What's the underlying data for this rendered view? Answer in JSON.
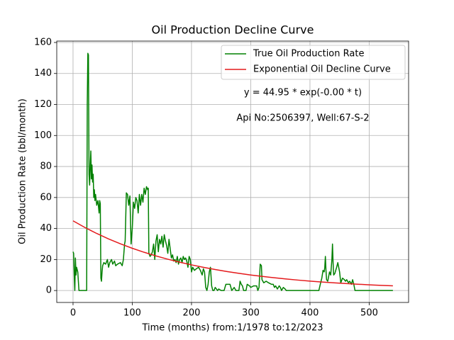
{
  "chart_data": {
    "type": "line",
    "title": "Oil Production Decline Curve",
    "x_label": "Time (months) from:1/1978 to:12/2023",
    "y_label": "Oil Production Rate (bbl/month)",
    "annotations": [
      "y = 44.95 * exp(-0.00 * t)",
      "Api No:2506397, Well:67-S-2"
    ],
    "xlim": [
      -27.5,
      566.5
    ],
    "ylim": [
      -7.7,
      160.9
    ],
    "xticks": [
      0,
      100,
      200,
      300,
      400,
      500
    ],
    "yticks": [
      0,
      20,
      40,
      60,
      80,
      100,
      120,
      140,
      160
    ],
    "grid": true,
    "legend": "upper right",
    "series": [
      {
        "name": "True Oil Production Rate",
        "color": "#008000",
        "x": [
          0,
          1,
          2,
          3,
          4,
          5,
          6,
          8,
          10,
          15,
          20,
          23,
          24,
          25,
          26,
          27,
          28,
          29,
          30,
          31,
          32,
          33,
          34,
          35,
          36,
          37,
          38,
          40,
          42,
          44,
          45,
          46,
          47,
          48,
          49,
          50,
          52,
          55,
          58,
          60,
          62,
          65,
          67,
          70,
          72,
          75,
          80,
          83,
          85,
          87,
          88,
          90,
          92,
          94,
          96,
          98,
          100,
          102,
          104,
          106,
          108,
          110,
          112,
          114,
          116,
          118,
          120,
          122,
          124,
          126,
          127,
          128,
          130,
          132,
          134,
          136,
          138,
          140,
          142,
          144,
          146,
          148,
          150,
          152,
          154,
          156,
          158,
          160,
          162,
          164,
          166,
          168,
          170,
          172,
          174,
          176,
          178,
          180,
          182,
          184,
          186,
          188,
          190,
          192,
          194,
          196,
          198,
          200,
          202,
          205,
          208,
          212,
          215,
          218,
          220,
          222,
          224,
          226,
          228,
          230,
          232,
          234,
          236,
          238,
          240,
          242,
          244,
          246,
          250,
          255,
          258,
          265,
          268,
          272,
          275,
          280,
          282,
          284,
          286,
          288,
          292,
          294,
          298,
          300,
          305,
          310,
          312,
          314,
          316,
          318,
          319,
          322,
          326,
          330,
          335,
          338,
          340,
          342,
          345,
          348,
          350,
          352,
          355,
          358,
          360,
          365,
          380,
          400,
          415,
          418,
          420,
          422,
          424,
          425,
          426,
          427,
          428,
          430,
          433,
          435,
          437,
          438,
          439,
          440,
          442,
          445,
          447,
          450,
          452,
          455,
          458,
          460,
          462,
          465,
          467,
          470,
          472,
          474,
          476,
          480,
          500,
          520,
          540
        ],
        "values": [
          25,
          24,
          10,
          0,
          21,
          10,
          15,
          12,
          0,
          0,
          0,
          0,
          120,
          153,
          152,
          75,
          68,
          80,
          90,
          72,
          81,
          70,
          75,
          60,
          65,
          58,
          62,
          55,
          58,
          50,
          58,
          56,
          8,
          6,
          12,
          16,
          18,
          17,
          20,
          15,
          18,
          20,
          17,
          19,
          16,
          17,
          18,
          16,
          20,
          30,
          32,
          63,
          62,
          55,
          61,
          30,
          40,
          57,
          53,
          60,
          58,
          50,
          62,
          55,
          62,
          57,
          66,
          62,
          67,
          65,
          66,
          24,
          22,
          23,
          25,
          30,
          20,
          32,
          36,
          25,
          33,
          30,
          35,
          28,
          36,
          32,
          29,
          24,
          33,
          27,
          21,
          23,
          19,
          20,
          18,
          22,
          17,
          20,
          21,
          18,
          22,
          20,
          21,
          19,
          15,
          22,
          20,
          12,
          15,
          13,
          14,
          15,
          13,
          10,
          14,
          12,
          2,
          0,
          4,
          12,
          15,
          3,
          0,
          0,
          2,
          1,
          0,
          1,
          0,
          0,
          4,
          4,
          0,
          2,
          0,
          0,
          6,
          4,
          3,
          0,
          0,
          4,
          3,
          2,
          3,
          3,
          0,
          2,
          17,
          16,
          7,
          5,
          6,
          5,
          4,
          4,
          2,
          3,
          1,
          3,
          2,
          0,
          2,
          1,
          0,
          0,
          0,
          0,
          0,
          5,
          8,
          13,
          12,
          15,
          22,
          13,
          7,
          6,
          12,
          10,
          20,
          30,
          18,
          10,
          11,
          15,
          18,
          12,
          5,
          8,
          7,
          6,
          7,
          5,
          6,
          4,
          7,
          4,
          0,
          0,
          0,
          0,
          0
        ]
      },
      {
        "name": "Exponential Oil Decline Curve",
        "color": "#e41a1c",
        "x": [
          0,
          20,
          40,
          60,
          80,
          100,
          120,
          140,
          160,
          180,
          200,
          220,
          240,
          260,
          280,
          300,
          320,
          340,
          360,
          380,
          400,
          420,
          440,
          460,
          480,
          500,
          520,
          540
        ],
        "values": [
          44.95,
          40.67,
          36.8,
          33.3,
          30.13,
          27.26,
          24.67,
          22.32,
          20.2,
          18.27,
          16.54,
          14.96,
          13.54,
          12.25,
          11.08,
          10.03,
          9.07,
          8.21,
          7.43,
          6.72,
          6.08,
          5.5,
          4.98,
          4.51,
          4.08,
          3.69,
          3.34,
          3.02
        ]
      }
    ]
  }
}
